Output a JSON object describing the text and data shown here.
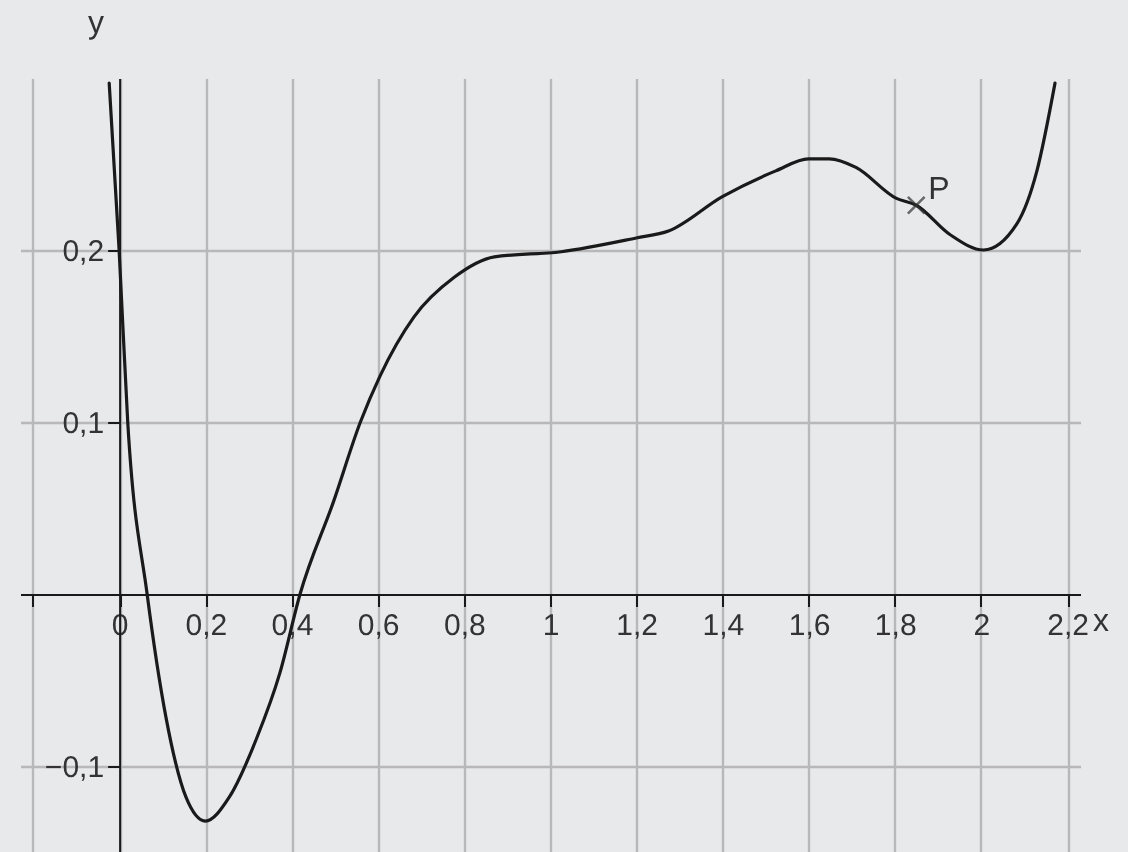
{
  "chart_data": {
    "type": "line",
    "xlabel": "x",
    "ylabel": "y",
    "xlim": [
      -0.23,
      2.23
    ],
    "ylim": [
      -0.15,
      0.3
    ],
    "xticks": [
      {
        "value": -0.2,
        "label": null
      },
      0,
      {
        "value": 0.2,
        "label": "0,2"
      },
      {
        "value": 0.4,
        "label": "0,4"
      },
      {
        "value": 0.6,
        "label": "0,6"
      },
      {
        "value": 0.8,
        "label": "0,8"
      },
      1,
      {
        "value": 1.2,
        "label": "1,2"
      },
      {
        "value": 1.4,
        "label": "1,4"
      },
      {
        "value": 1.6,
        "label": "1,6"
      },
      {
        "value": 1.8,
        "label": "1,8"
      },
      2,
      {
        "value": 2.2,
        "label": "2,2"
      }
    ],
    "yticks": [
      {
        "value": -0.1,
        "label": "−0,1"
      },
      {
        "value": 0.1,
        "label": "0,1"
      },
      {
        "value": 0.2,
        "label": "0,2"
      }
    ],
    "grid": true,
    "series": [
      {
        "color": "#1a1a1a",
        "x": [
          -0.023,
          0,
          0.02,
          0.065,
          0.109,
          0.155,
          0.2,
          0.256,
          0.319,
          0.373,
          0.42,
          0.498,
          0.56,
          0.606,
          0.684,
          0.777,
          0.871,
          1.026,
          1.2,
          1.275,
          1.4,
          1.524,
          1.6,
          1.648,
          1.71,
          1.804,
          1.85,
          1.928,
          2.006,
          2.083,
          2.13,
          2.172
        ],
        "values": [
          0.297,
          0.2,
          0.1,
          0,
          -0.072,
          -0.118,
          -0.132,
          -0.118,
          -0.084,
          -0.046,
          0,
          0.054,
          0.1,
          0.127,
          0.161,
          0.184,
          0.196,
          0.199,
          0.207,
          0.211,
          0.231,
          0.246,
          0.253,
          0.253,
          0.248,
          0.23,
          0.226,
          0.209,
          0.2,
          0.215,
          0.246,
          0.297
        ]
      },
      {
        "type": "scatter",
        "marker": "cross",
        "color": "#333333",
        "x": [
          1.85
        ],
        "values": [
          0.226
        ]
      }
    ],
    "annotations": [
      {
        "text": "P",
        "x": 1.85,
        "y": 0.226
      }
    ]
  }
}
